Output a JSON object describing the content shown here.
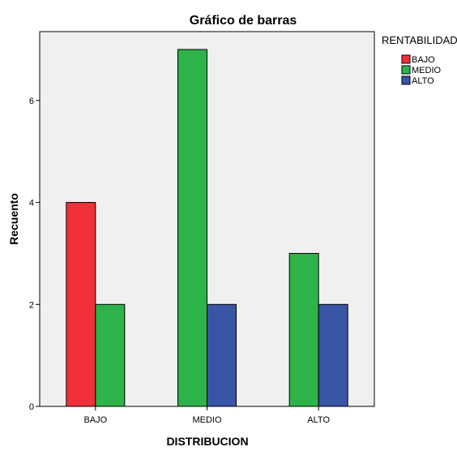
{
  "chart_data": {
    "type": "bar",
    "title": "Gráfico de barras",
    "xlabel": "DISTRIBUCION",
    "ylabel": "Recuento",
    "categories": [
      "BAJO",
      "MEDIO",
      "ALTO"
    ],
    "series": [
      {
        "name": "BAJO",
        "values": [
          4,
          null,
          null
        ],
        "color": "#f0303a"
      },
      {
        "name": "MEDIO",
        "values": [
          2,
          7,
          3
        ],
        "color": "#2db34a"
      },
      {
        "name": "ALTO",
        "values": [
          null,
          2,
          2
        ],
        "color": "#3a54a6"
      }
    ],
    "ylim": [
      0,
      7.35
    ],
    "yticks": [
      0,
      2,
      4,
      6
    ],
    "grid": false,
    "plot_background": "#f0f0f0",
    "legend": {
      "title": "RENTABILIDAD",
      "placement": "right-top"
    }
  }
}
